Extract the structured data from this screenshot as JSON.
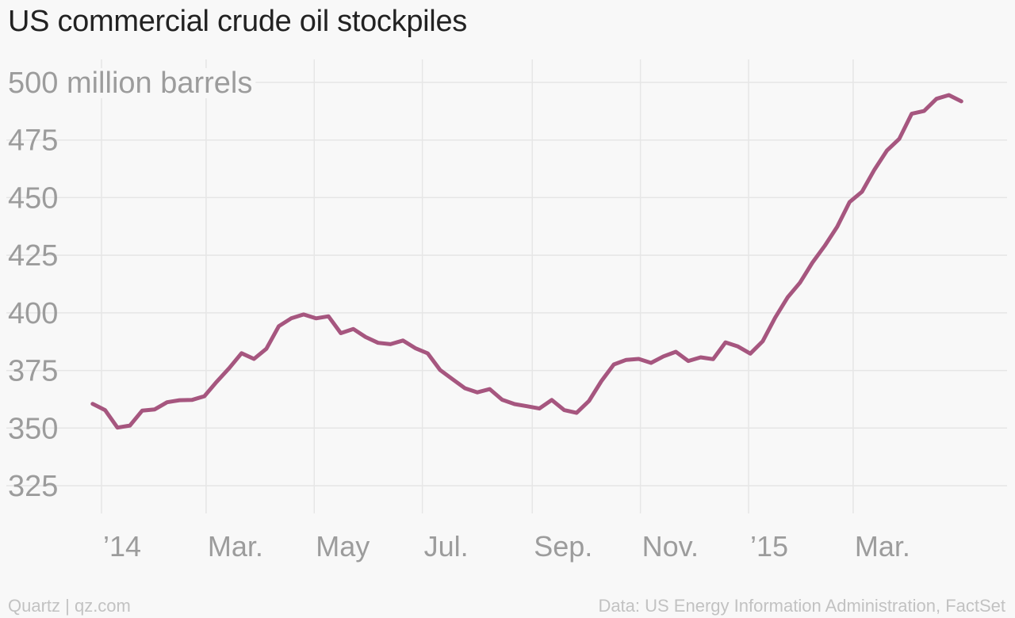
{
  "title": "US commercial crude oil stockpiles",
  "footer": {
    "source_left": "Quartz | qz.com",
    "source_right": "Data: US Energy Information Administration, FactSet"
  },
  "colors": {
    "line": "#a6567f",
    "grid": "#e6e6e6",
    "tick_text": "#9c9c9c",
    "title_text": "#222222",
    "footer_text": "#c2c2c2",
    "background": "#f8f8f8"
  },
  "chart_data": {
    "type": "line",
    "title": "US commercial crude oil stockpiles",
    "ylabel": "million barrels",
    "xlabel": "",
    "ylim": [
      312,
      512
    ],
    "xlim": [
      "2013-12-12",
      "2015-04-30"
    ],
    "grid": true,
    "x_ticks": [
      {
        "date": "2014-01-01",
        "label": "’14"
      },
      {
        "date": "2014-03-01",
        "label": "Mar."
      },
      {
        "date": "2014-05-01",
        "label": "May"
      },
      {
        "date": "2014-07-01",
        "label": "Jul."
      },
      {
        "date": "2014-09-01",
        "label": "Sep."
      },
      {
        "date": "2014-11-01",
        "label": "Nov."
      },
      {
        "date": "2015-01-01",
        "label": "’15"
      },
      {
        "date": "2015-03-01",
        "label": "Mar."
      }
    ],
    "y_ticks": [
      {
        "value": 500,
        "label": "500 million barrels"
      },
      {
        "value": 475,
        "label": "475"
      },
      {
        "value": 450,
        "label": "450"
      },
      {
        "value": 425,
        "label": "425"
      },
      {
        "value": 400,
        "label": "400"
      },
      {
        "value": 375,
        "label": "375"
      },
      {
        "value": 350,
        "label": "350"
      },
      {
        "value": 325,
        "label": "325"
      }
    ],
    "series": [
      {
        "points": [
          [
            "2013-12-27",
            360.5
          ],
          [
            "2014-01-03",
            357.8
          ],
          [
            "2014-01-10",
            350.2
          ],
          [
            "2014-01-17",
            351.1
          ],
          [
            "2014-01-24",
            357.6
          ],
          [
            "2014-01-31",
            358.1
          ],
          [
            "2014-02-07",
            361.2
          ],
          [
            "2014-02-14",
            362.1
          ],
          [
            "2014-02-21",
            362.2
          ],
          [
            "2014-02-28",
            363.8
          ],
          [
            "2014-03-07",
            370.1
          ],
          [
            "2014-03-14",
            376.0
          ],
          [
            "2014-03-21",
            382.5
          ],
          [
            "2014-03-28",
            380.0
          ],
          [
            "2014-04-04",
            384.4
          ],
          [
            "2014-04-11",
            394.2
          ],
          [
            "2014-04-18",
            397.6
          ],
          [
            "2014-04-25",
            399.3
          ],
          [
            "2014-05-02",
            397.6
          ],
          [
            "2014-05-09",
            398.5
          ],
          [
            "2014-05-16",
            391.2
          ],
          [
            "2014-05-23",
            393.0
          ],
          [
            "2014-05-30",
            389.5
          ],
          [
            "2014-06-06",
            387.0
          ],
          [
            "2014-06-13",
            386.4
          ],
          [
            "2014-06-20",
            388.0
          ],
          [
            "2014-06-27",
            384.7
          ],
          [
            "2014-07-04",
            382.4
          ],
          [
            "2014-07-11",
            375.2
          ],
          [
            "2014-07-18",
            371.2
          ],
          [
            "2014-07-25",
            367.3
          ],
          [
            "2014-08-01",
            365.5
          ],
          [
            "2014-08-08",
            366.9
          ],
          [
            "2014-08-15",
            362.3
          ],
          [
            "2014-08-22",
            360.4
          ],
          [
            "2014-08-29",
            359.5
          ],
          [
            "2014-09-05",
            358.5
          ],
          [
            "2014-09-12",
            362.2
          ],
          [
            "2014-09-19",
            357.8
          ],
          [
            "2014-09-26",
            356.6
          ],
          [
            "2014-10-03",
            361.8
          ],
          [
            "2014-10-10",
            370.4
          ],
          [
            "2014-10-17",
            377.6
          ],
          [
            "2014-10-24",
            379.6
          ],
          [
            "2014-10-31",
            380.0
          ],
          [
            "2014-11-07",
            378.3
          ],
          [
            "2014-11-14",
            381.1
          ],
          [
            "2014-11-21",
            383.1
          ],
          [
            "2014-11-28",
            379.1
          ],
          [
            "2014-12-05",
            380.7
          ],
          [
            "2014-12-12",
            379.9
          ],
          [
            "2014-12-19",
            387.2
          ],
          [
            "2014-12-26",
            385.4
          ],
          [
            "2015-01-02",
            382.3
          ],
          [
            "2015-01-09",
            387.7
          ],
          [
            "2015-01-16",
            397.9
          ],
          [
            "2015-01-23",
            406.7
          ],
          [
            "2015-01-30",
            413.1
          ],
          [
            "2015-02-06",
            421.8
          ],
          [
            "2015-02-13",
            429.1
          ],
          [
            "2015-02-20",
            437.4
          ],
          [
            "2015-02-27",
            448.1
          ],
          [
            "2015-03-06",
            452.6
          ],
          [
            "2015-03-13",
            462.1
          ],
          [
            "2015-03-20",
            470.4
          ],
          [
            "2015-03-27",
            475.5
          ],
          [
            "2015-04-03",
            486.4
          ],
          [
            "2015-04-10",
            487.6
          ],
          [
            "2015-04-17",
            492.9
          ],
          [
            "2015-04-24",
            494.5
          ],
          [
            "2015-05-01",
            491.8
          ]
        ]
      }
    ]
  }
}
